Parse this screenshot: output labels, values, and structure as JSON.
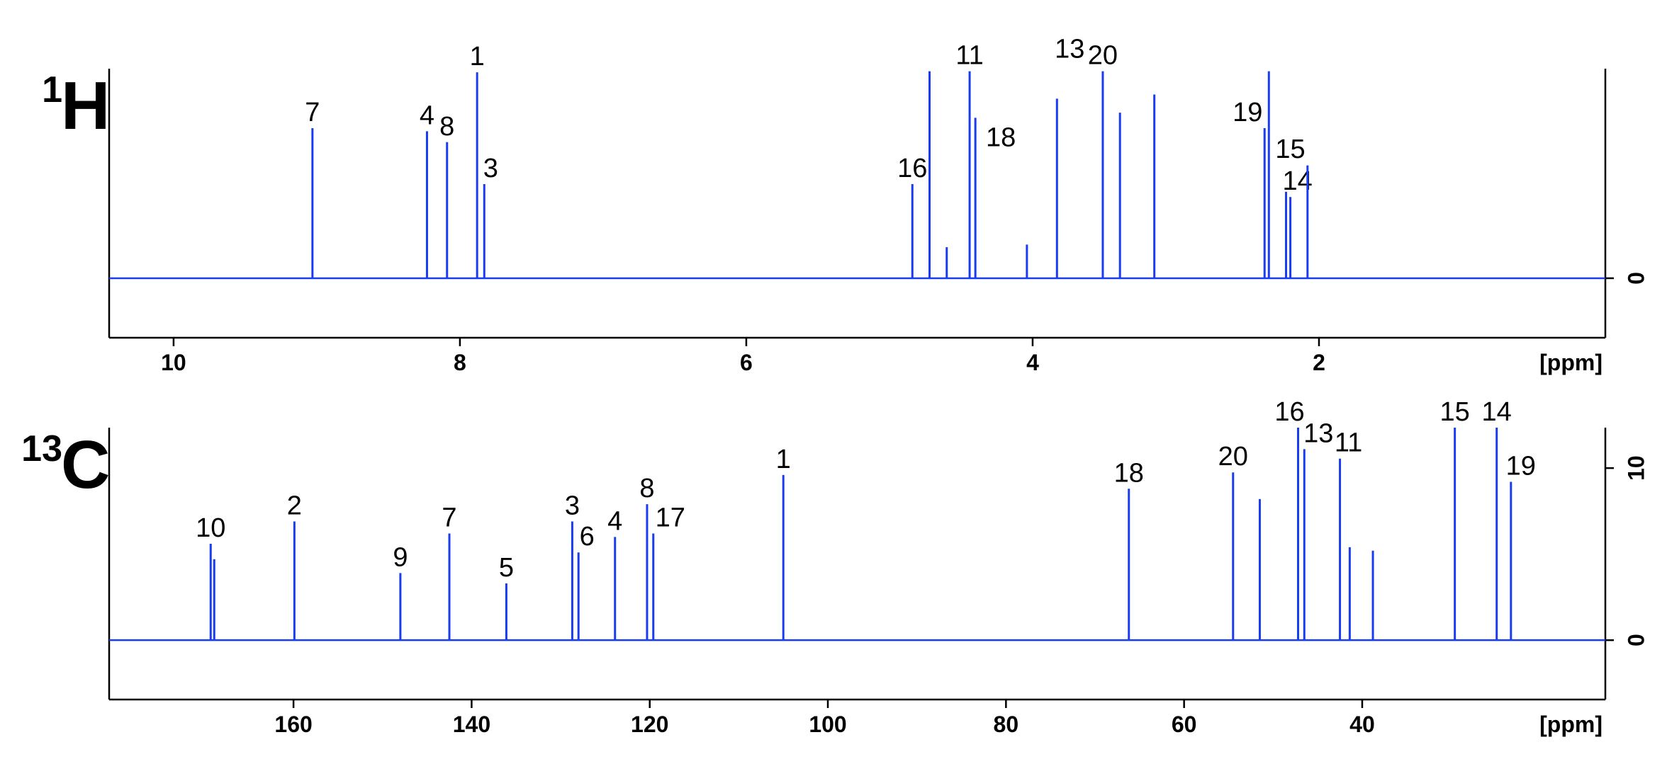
{
  "chart_data": [
    {
      "type": "spectrum",
      "title": "H",
      "title_superscript": "1",
      "xlabel": "[ppm]",
      "xlim": [
        10.45,
        0
      ],
      "xticks": [
        10,
        8,
        6,
        4,
        2
      ],
      "ylim": [
        -1.15,
        4.05
      ],
      "yticks": [
        0
      ],
      "series": [
        {
          "color": "#1a3cf0",
          "x": [
            9.03,
            8.23,
            8.09,
            7.88,
            7.83,
            4.84,
            4.72,
            4.6,
            4.44,
            4.4,
            4.04,
            3.83,
            3.51,
            3.39,
            3.15,
            2.38,
            2.35,
            2.23,
            2.2,
            2.08
          ],
          "values": [
            2.9,
            2.84,
            2.63,
            3.98,
            1.82,
            1.82,
            4.0,
            0.6,
            4.0,
            3.1,
            0.65,
            3.47,
            4.0,
            3.2,
            3.55,
            2.9,
            4.0,
            1.67,
            1.57,
            2.18
          ],
          "labels": [
            "7",
            "4",
            "8",
            "1",
            "3",
            "16",
            null,
            null,
            "11",
            "18",
            null,
            "13",
            "20",
            null,
            null,
            "19",
            null,
            "15",
            "14",
            null
          ]
        }
      ]
    },
    {
      "type": "spectrum",
      "title": "C",
      "title_superscript": "13",
      "xlabel": "[ppm]",
      "xlim": [
        180.7,
        12.7
      ],
      "xticks": [
        160,
        140,
        120,
        100,
        80,
        60,
        40
      ],
      "ylim": [
        -3.45,
        12.35
      ],
      "yticks": [
        0,
        10
      ],
      "series": [
        {
          "color": "#1a3cf0",
          "x": [
            169.3,
            168.9,
            159.9,
            148.0,
            142.5,
            136.1,
            128.7,
            128.0,
            123.9,
            120.3,
            119.6,
            105.0,
            66.2,
            54.5,
            51.5,
            47.2,
            46.5,
            42.5,
            41.4,
            38.8,
            29.6,
            24.9,
            23.3
          ],
          "values": [
            5.6,
            4.7,
            6.9,
            3.9,
            6.2,
            3.3,
            6.9,
            5.1,
            6.0,
            7.9,
            6.2,
            9.6,
            8.8,
            9.75,
            8.2,
            12.35,
            11.1,
            10.55,
            5.4,
            5.2,
            12.35,
            12.35,
            9.2
          ],
          "labels": [
            "10",
            null,
            "2",
            "9",
            "7",
            "5",
            "3",
            "6",
            "4",
            "8",
            "17",
            "1",
            "18",
            "20",
            null,
            "16",
            "13",
            "11",
            null,
            null,
            "15",
            "14",
            "19"
          ]
        }
      ]
    }
  ]
}
